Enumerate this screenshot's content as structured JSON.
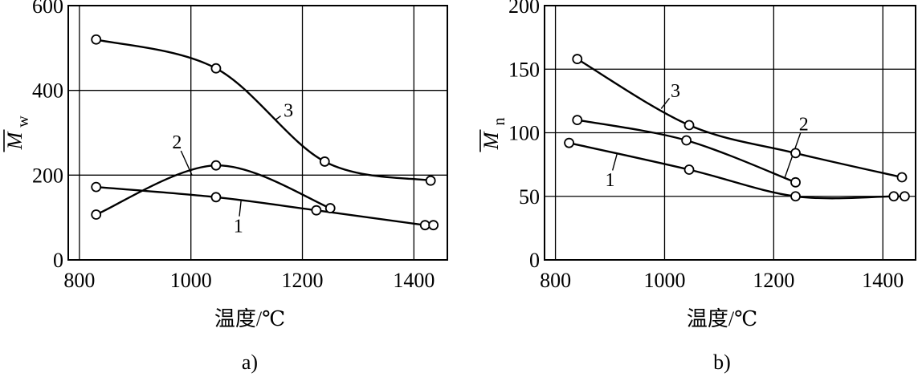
{
  "chart_data": [
    {
      "type": "line",
      "panel_label": "a)",
      "xlabel": "温度/℃",
      "ylabel_main": "M",
      "ylabel_sub": "w",
      "xlim": [
        780,
        1460
      ],
      "ylim": [
        0,
        600
      ],
      "xticks": [
        800,
        1000,
        1200,
        1400
      ],
      "yticks": [
        0,
        200,
        400,
        600
      ],
      "grid": true,
      "series": [
        {
          "name": "1",
          "x": [
            830,
            1045,
            1225,
            1420,
            1435
          ],
          "y": [
            172,
            148,
            117,
            82,
            82
          ],
          "label_at": [
            1085,
            65
          ]
        },
        {
          "name": "2",
          "x": [
            830,
            1045,
            1250
          ],
          "y": [
            107,
            223,
            122
          ],
          "label_at": [
            975,
            263
          ]
        },
        {
          "name": "3",
          "x": [
            830,
            1045,
            1240,
            1430
          ],
          "y": [
            520,
            452,
            232,
            187
          ],
          "label_at": [
            1175,
            338
          ]
        }
      ]
    },
    {
      "type": "line",
      "panel_label": "b)",
      "xlabel": "温度/℃",
      "ylabel_main": "M",
      "ylabel_sub": "n",
      "xlim": [
        780,
        1460
      ],
      "ylim": [
        0,
        200
      ],
      "xticks": [
        800,
        1000,
        1200,
        1400
      ],
      "yticks": [
        0,
        50,
        100,
        150,
        200
      ],
      "grid": true,
      "series": [
        {
          "name": "1",
          "x": [
            825,
            1045,
            1240,
            1420,
            1440
          ],
          "y": [
            92,
            71,
            50,
            50,
            50
          ],
          "label_at": [
            900,
            58
          ]
        },
        {
          "name": "2",
          "x": [
            840,
            1040,
            1240
          ],
          "y": [
            110,
            94,
            61
          ],
          "label_at": [
            1255,
            102
          ]
        },
        {
          "name": "3",
          "x": [
            840,
            1045,
            1240,
            1435
          ],
          "y": [
            158,
            106,
            84,
            65
          ],
          "label_at": [
            1020,
            128
          ]
        }
      ]
    }
  ]
}
